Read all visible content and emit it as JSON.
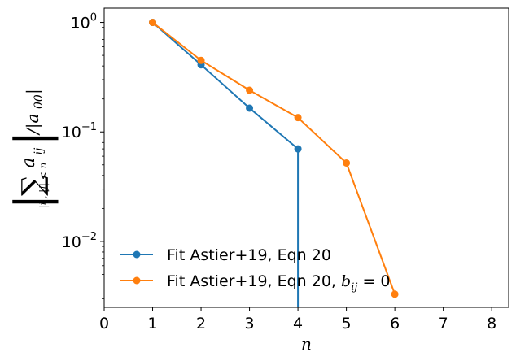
{
  "chart_data": {
    "type": "line",
    "xlabel": "n",
    "ylabel": "|Σ_{|i|, |j| < n} a_ij| / |a_00|",
    "ylabel_parts": {
      "sum": "∑",
      "sum_sub": "|i|, |j| < n",
      "term": "a",
      "term_sub": "ij",
      "div": "/|a",
      "div_sub": "00",
      "close": "|"
    },
    "xlim": [
      0,
      8.35
    ],
    "ylim": [
      0.0025,
      1.35
    ],
    "yscale": "log",
    "xticks": [
      0,
      1,
      2,
      3,
      4,
      5,
      6,
      7,
      8
    ],
    "xtick_labels": [
      "0",
      "1",
      "2",
      "3",
      "4",
      "5",
      "6",
      "7",
      "8"
    ],
    "yticks": [
      {
        "value": 1,
        "base": "10",
        "exp": "0"
      },
      {
        "value": 0.1,
        "base": "10",
        "exp": "−1"
      },
      {
        "value": 0.01,
        "base": "10",
        "exp": "−2"
      }
    ],
    "grid": false,
    "legend_position": "lower-left",
    "series": [
      {
        "name": "Fit Astier+19, Eqn 20",
        "color": "#1f77b4",
        "x": [
          1,
          2,
          3,
          4
        ],
        "y": [
          1.0,
          0.41,
          0.165,
          0.07
        ],
        "drop_to_zero_after_last": true
      },
      {
        "name": "Fit Astier+19, Eqn 20, b_ij = 0",
        "name_parts": {
          "prefix": "Fit Astier+19, Eqn 20, ",
          "var": "b",
          "sub": "ij",
          "suffix": " = 0"
        },
        "color": "#ff7f0e",
        "x": [
          1,
          2,
          3,
          4,
          5,
          6
        ],
        "y": [
          1.0,
          0.45,
          0.24,
          0.135,
          0.052,
          0.0033
        ]
      }
    ]
  }
}
